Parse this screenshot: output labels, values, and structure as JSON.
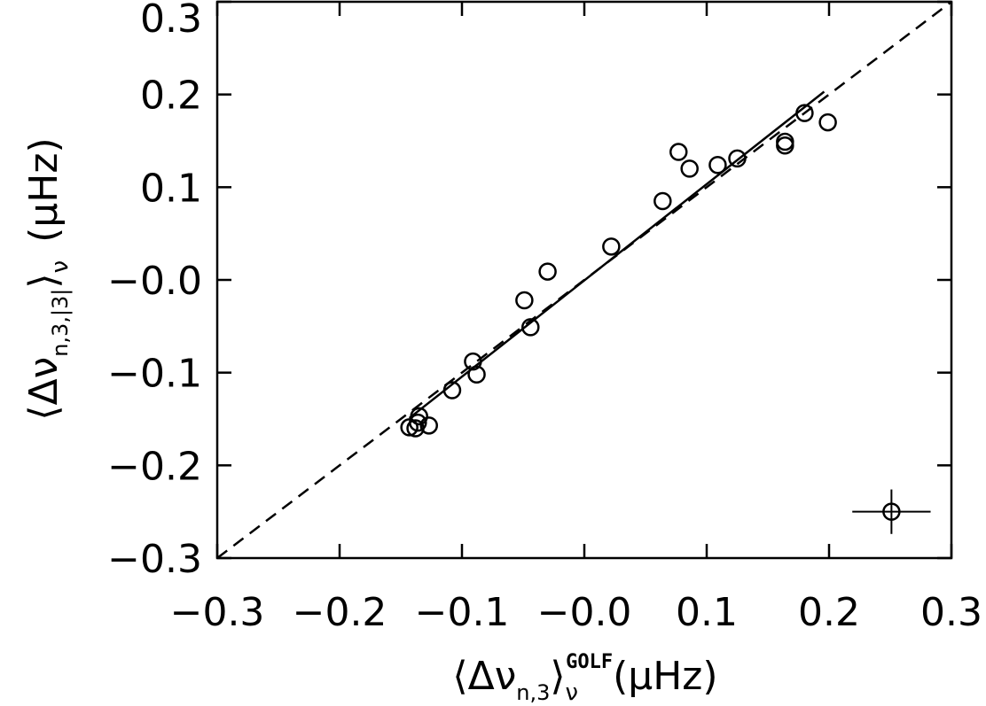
{
  "chart_data": {
    "type": "scatter",
    "x_label": {
      "open": "⟨Δν",
      "sub": "n,3",
      "close": "⟩",
      "sub2": "ν",
      "sup": "GOLF",
      "unit": "(μHz)"
    },
    "y_label": {
      "open": "⟨Δν",
      "sub": "n,3,|3|",
      "close": "⟩",
      "sub2": "ν",
      "unit": "(μHz)"
    },
    "xlim": [
      -0.3,
      0.3
    ],
    "ylim": [
      -0.3,
      0.3
    ],
    "xticks": [
      {
        "value": -0.3,
        "label": "−0.3"
      },
      {
        "value": -0.2,
        "label": "−0.2"
      },
      {
        "value": -0.1,
        "label": "−0.1"
      },
      {
        "value": 0,
        "label": "−0.0"
      },
      0.1,
      0.2,
      0.3
    ],
    "yticks": [
      {
        "value": -0.3,
        "label": "−0.3"
      },
      {
        "value": -0.2,
        "label": "−0.2"
      },
      {
        "value": -0.1,
        "label": "−0.1"
      },
      {
        "value": 0,
        "label": "−0.0"
      },
      0.1,
      0.2,
      0.3
    ],
    "color": "#000000",
    "series": [
      {
        "x": [
          -0.143,
          -0.138,
          -0.136,
          -0.135,
          -0.127,
          -0.108,
          -0.091,
          -0.088,
          -0.049,
          -0.044,
          -0.03,
          0.022,
          0.064,
          0.077,
          0.086,
          0.109,
          0.125,
          0.164,
          0.164,
          0.18,
          0.199
        ],
        "y": [
          -0.159,
          -0.16,
          -0.154,
          -0.147,
          -0.157,
          -0.119,
          -0.088,
          -0.102,
          -0.022,
          -0.051,
          0.009,
          0.036,
          0.085,
          0.138,
          0.12,
          0.124,
          0.131,
          0.149,
          0.145,
          0.18,
          0.17
        ]
      }
    ],
    "fit": {
      "x": [
        -0.143,
        0.196
      ],
      "y": [
        -0.149,
        0.203
      ]
    },
    "reference": {
      "x": [
        -0.3,
        0.3
      ],
      "y": [
        -0.3,
        0.3
      ]
    },
    "error_sample": {
      "x": 0.251,
      "y": -0.25,
      "xerr": 0.032,
      "yerr": 0.024
    }
  }
}
